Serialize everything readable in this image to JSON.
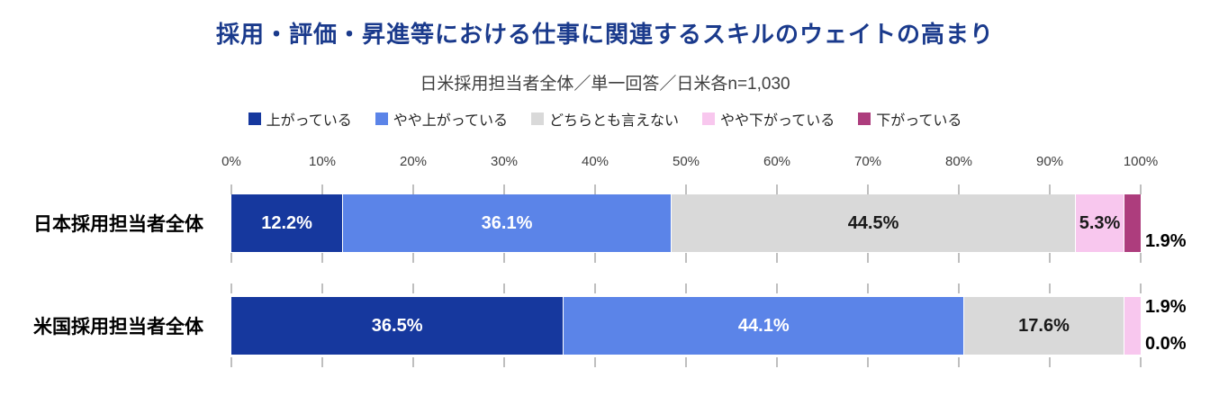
{
  "chart_data": {
    "type": "bar",
    "orientation": "horizontal",
    "stacked": true,
    "title": "採用・評価・昇進等における仕事に関連するスキルのウェイトの高まり",
    "subtitle": "日米採用担当者全体／単一回答／日米各n=1,030",
    "categories": [
      "日本採用担当者全体",
      "米国採用担当者全体"
    ],
    "series": [
      {
        "name": "上がっている",
        "color": "#16389e",
        "label_color": "#ffffff",
        "values": [
          12.2,
          36.5
        ]
      },
      {
        "name": "やや上がっている",
        "color": "#5b84e8",
        "label_color": "#ffffff",
        "values": [
          36.1,
          44.1
        ]
      },
      {
        "name": "どちらとも言えない",
        "color": "#d9d9d9",
        "label_color": "#1a1a1a",
        "values": [
          44.5,
          17.6
        ]
      },
      {
        "name": "やや下がっている",
        "color": "#f8c7ee",
        "label_color": "#1a1a1a",
        "values": [
          5.3,
          1.9
        ]
      },
      {
        "name": "下がっている",
        "color": "#ad3d7d",
        "label_color": "#1a1a1a",
        "values": [
          1.9,
          0.0
        ]
      }
    ],
    "x_axis": {
      "ticks": [
        "0%",
        "10%",
        "20%",
        "30%",
        "40%",
        "50%",
        "60%",
        "70%",
        "80%",
        "90%",
        "100%"
      ],
      "min": 0,
      "max": 100
    },
    "value_suffix": "%",
    "legend_position": "top",
    "grid": "tick-stubs",
    "colors": {
      "title": "#1a3a8c",
      "axis_text": "#3f3f3f",
      "tick": "#7f7f7f"
    }
  }
}
